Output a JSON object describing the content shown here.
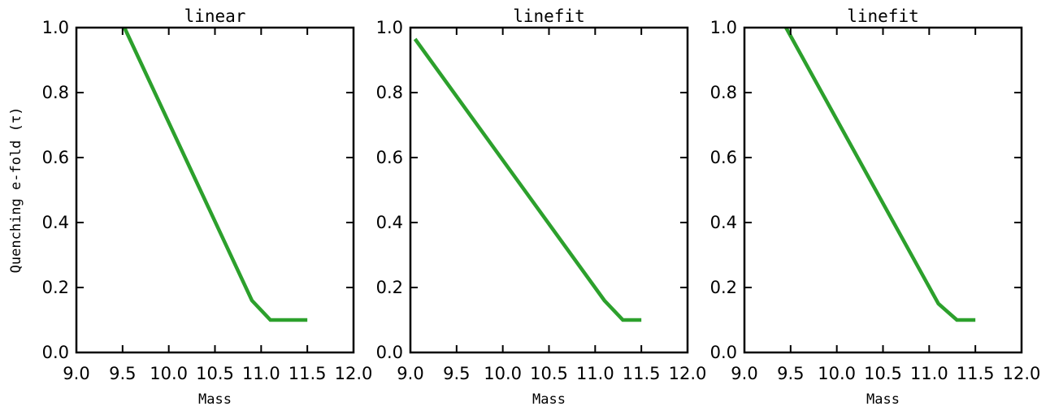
{
  "figure": {
    "ylabel": "Quenching e-fold (τ)"
  },
  "chart_data": [
    {
      "type": "line",
      "title": "linear",
      "xlabel": "Mass",
      "ylabel": "Quenching e-fold (τ)",
      "xlim": [
        9.0,
        12.0
      ],
      "ylim": [
        0.0,
        1.0
      ],
      "xticks": [
        "9.0",
        "9.5",
        "10.0",
        "10.5",
        "11.0",
        "11.5",
        "12.0"
      ],
      "yticks": [
        "0.0",
        "0.2",
        "0.4",
        "0.6",
        "0.8",
        "1.0"
      ],
      "grid": false,
      "series": [
        {
          "color": "#2ca02c",
          "x": [
            9.52,
            10.9,
            11.1,
            11.5
          ],
          "y": [
            1.0,
            0.16,
            0.1,
            0.1
          ]
        }
      ]
    },
    {
      "type": "line",
      "title": "linefit",
      "xlabel": "Mass",
      "ylabel": "",
      "xlim": [
        9.0,
        12.0
      ],
      "ylim": [
        0.0,
        1.0
      ],
      "xticks": [
        "9.0",
        "9.5",
        "10.0",
        "10.5",
        "11.0",
        "11.5",
        "12.0"
      ],
      "yticks": [
        "0.0",
        "0.2",
        "0.4",
        "0.6",
        "0.8",
        "1.0"
      ],
      "grid": false,
      "series": [
        {
          "color": "#2ca02c",
          "x": [
            9.05,
            11.1,
            11.3,
            11.5
          ],
          "y": [
            0.965,
            0.16,
            0.1,
            0.1
          ]
        }
      ]
    },
    {
      "type": "line",
      "title": "linefit",
      "xlabel": "Mass",
      "ylabel": "",
      "xlim": [
        9.0,
        12.0
      ],
      "ylim": [
        0.0,
        1.0
      ],
      "xticks": [
        "9.0",
        "9.5",
        "10.0",
        "10.5",
        "11.0",
        "11.5",
        "12.0"
      ],
      "yticks": [
        "0.0",
        "0.2",
        "0.4",
        "0.6",
        "0.8",
        "1.0"
      ],
      "grid": false,
      "series": [
        {
          "color": "#2ca02c",
          "x": [
            9.45,
            11.1,
            11.3,
            11.5
          ],
          "y": [
            1.0,
            0.15,
            0.1,
            0.1
          ]
        }
      ]
    }
  ]
}
